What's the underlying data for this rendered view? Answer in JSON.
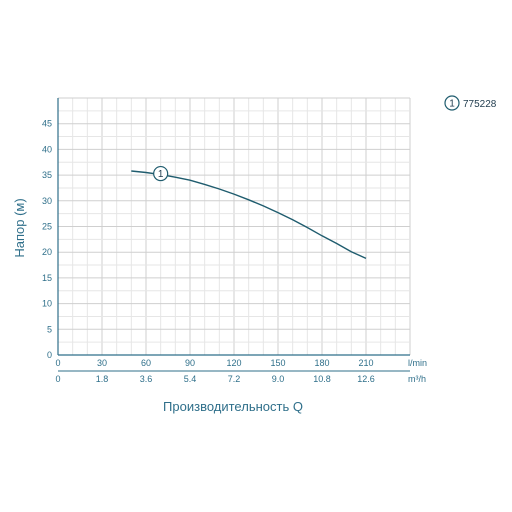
{
  "chart_data": {
    "type": "line",
    "ylabel": "Напор (м)",
    "xlabel": "Производительность Q",
    "x_unit_primary": "l/min",
    "x_unit_secondary": "m³/h",
    "ylim": [
      0,
      50
    ],
    "xlim": [
      0,
      240
    ],
    "yticks": [
      "0",
      "5",
      "10",
      "15",
      "20",
      "25",
      "30",
      "35",
      "40",
      "45"
    ],
    "xticks_primary": [
      "0",
      "30",
      "60",
      "90",
      "120",
      "150",
      "180",
      "210"
    ],
    "xticks_secondary": [
      "0",
      "1.8",
      "3.6",
      "5.4",
      "7.2",
      "9.0",
      "10.8",
      "12.6"
    ],
    "grid": true,
    "legend_position": "top-right",
    "series": [
      {
        "name": "775228",
        "marker_label": "1",
        "color": "#1f5c6e",
        "x": [
          50,
          60,
          70,
          80,
          90,
          100,
          110,
          120,
          130,
          140,
          150,
          160,
          170,
          180,
          190,
          200,
          210
        ],
        "y": [
          35.8,
          35.5,
          35.1,
          34.6,
          34.0,
          33.2,
          32.3,
          31.3,
          30.2,
          29.0,
          27.7,
          26.3,
          24.8,
          23.2,
          21.7,
          20.1,
          18.8
        ]
      }
    ]
  }
}
